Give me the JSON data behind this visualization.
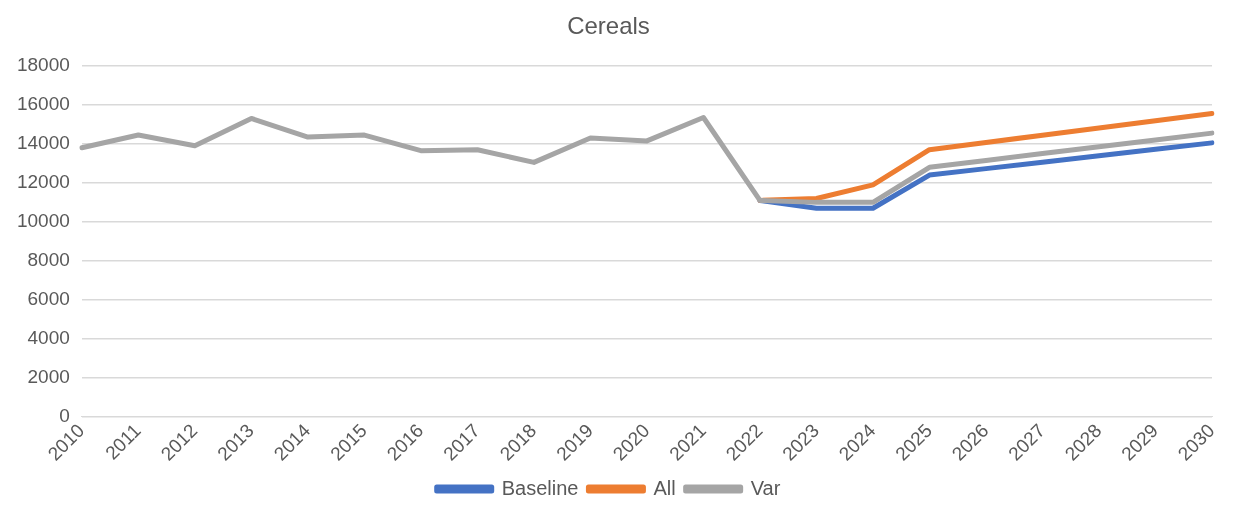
{
  "chart_data": {
    "type": "line",
    "title": "Cereals",
    "categories": [
      "2010",
      "2011",
      "2012",
      "2013",
      "2014",
      "2015",
      "2016",
      "2017",
      "2018",
      "2019",
      "2020",
      "2021",
      "2022",
      "2023",
      "2024",
      "2025",
      "2026",
      "2027",
      "2028",
      "2029",
      "2030"
    ],
    "series": [
      {
        "name": "Baseline",
        "color": "#4472c4",
        "values": [
          null,
          null,
          null,
          null,
          null,
          null,
          null,
          null,
          null,
          null,
          null,
          null,
          11100,
          10700,
          10700,
          12400,
          12730,
          13060,
          13390,
          13720,
          14050
        ]
      },
      {
        "name": "All",
        "color": "#ed7d31",
        "values": [
          null,
          null,
          null,
          null,
          null,
          null,
          null,
          null,
          null,
          null,
          null,
          null,
          11100,
          11200,
          11900,
          13700,
          14070,
          14440,
          14810,
          15180,
          15550
        ]
      },
      {
        "name": "Var",
        "color": "#a5a5a5",
        "values": [
          13800,
          14450,
          13900,
          15300,
          14350,
          14450,
          13650,
          13700,
          13050,
          14300,
          14150,
          15350,
          11100,
          11000,
          11000,
          12800,
          13150,
          13500,
          13850,
          14200,
          14550
        ]
      }
    ],
    "ylim": [
      0,
      18000
    ],
    "yticks": [
      0,
      2000,
      4000,
      6000,
      8000,
      10000,
      12000,
      14000,
      16000,
      18000
    ],
    "grid": "y",
    "legend": "bottom",
    "marker": "none",
    "line_style": "solid"
  }
}
